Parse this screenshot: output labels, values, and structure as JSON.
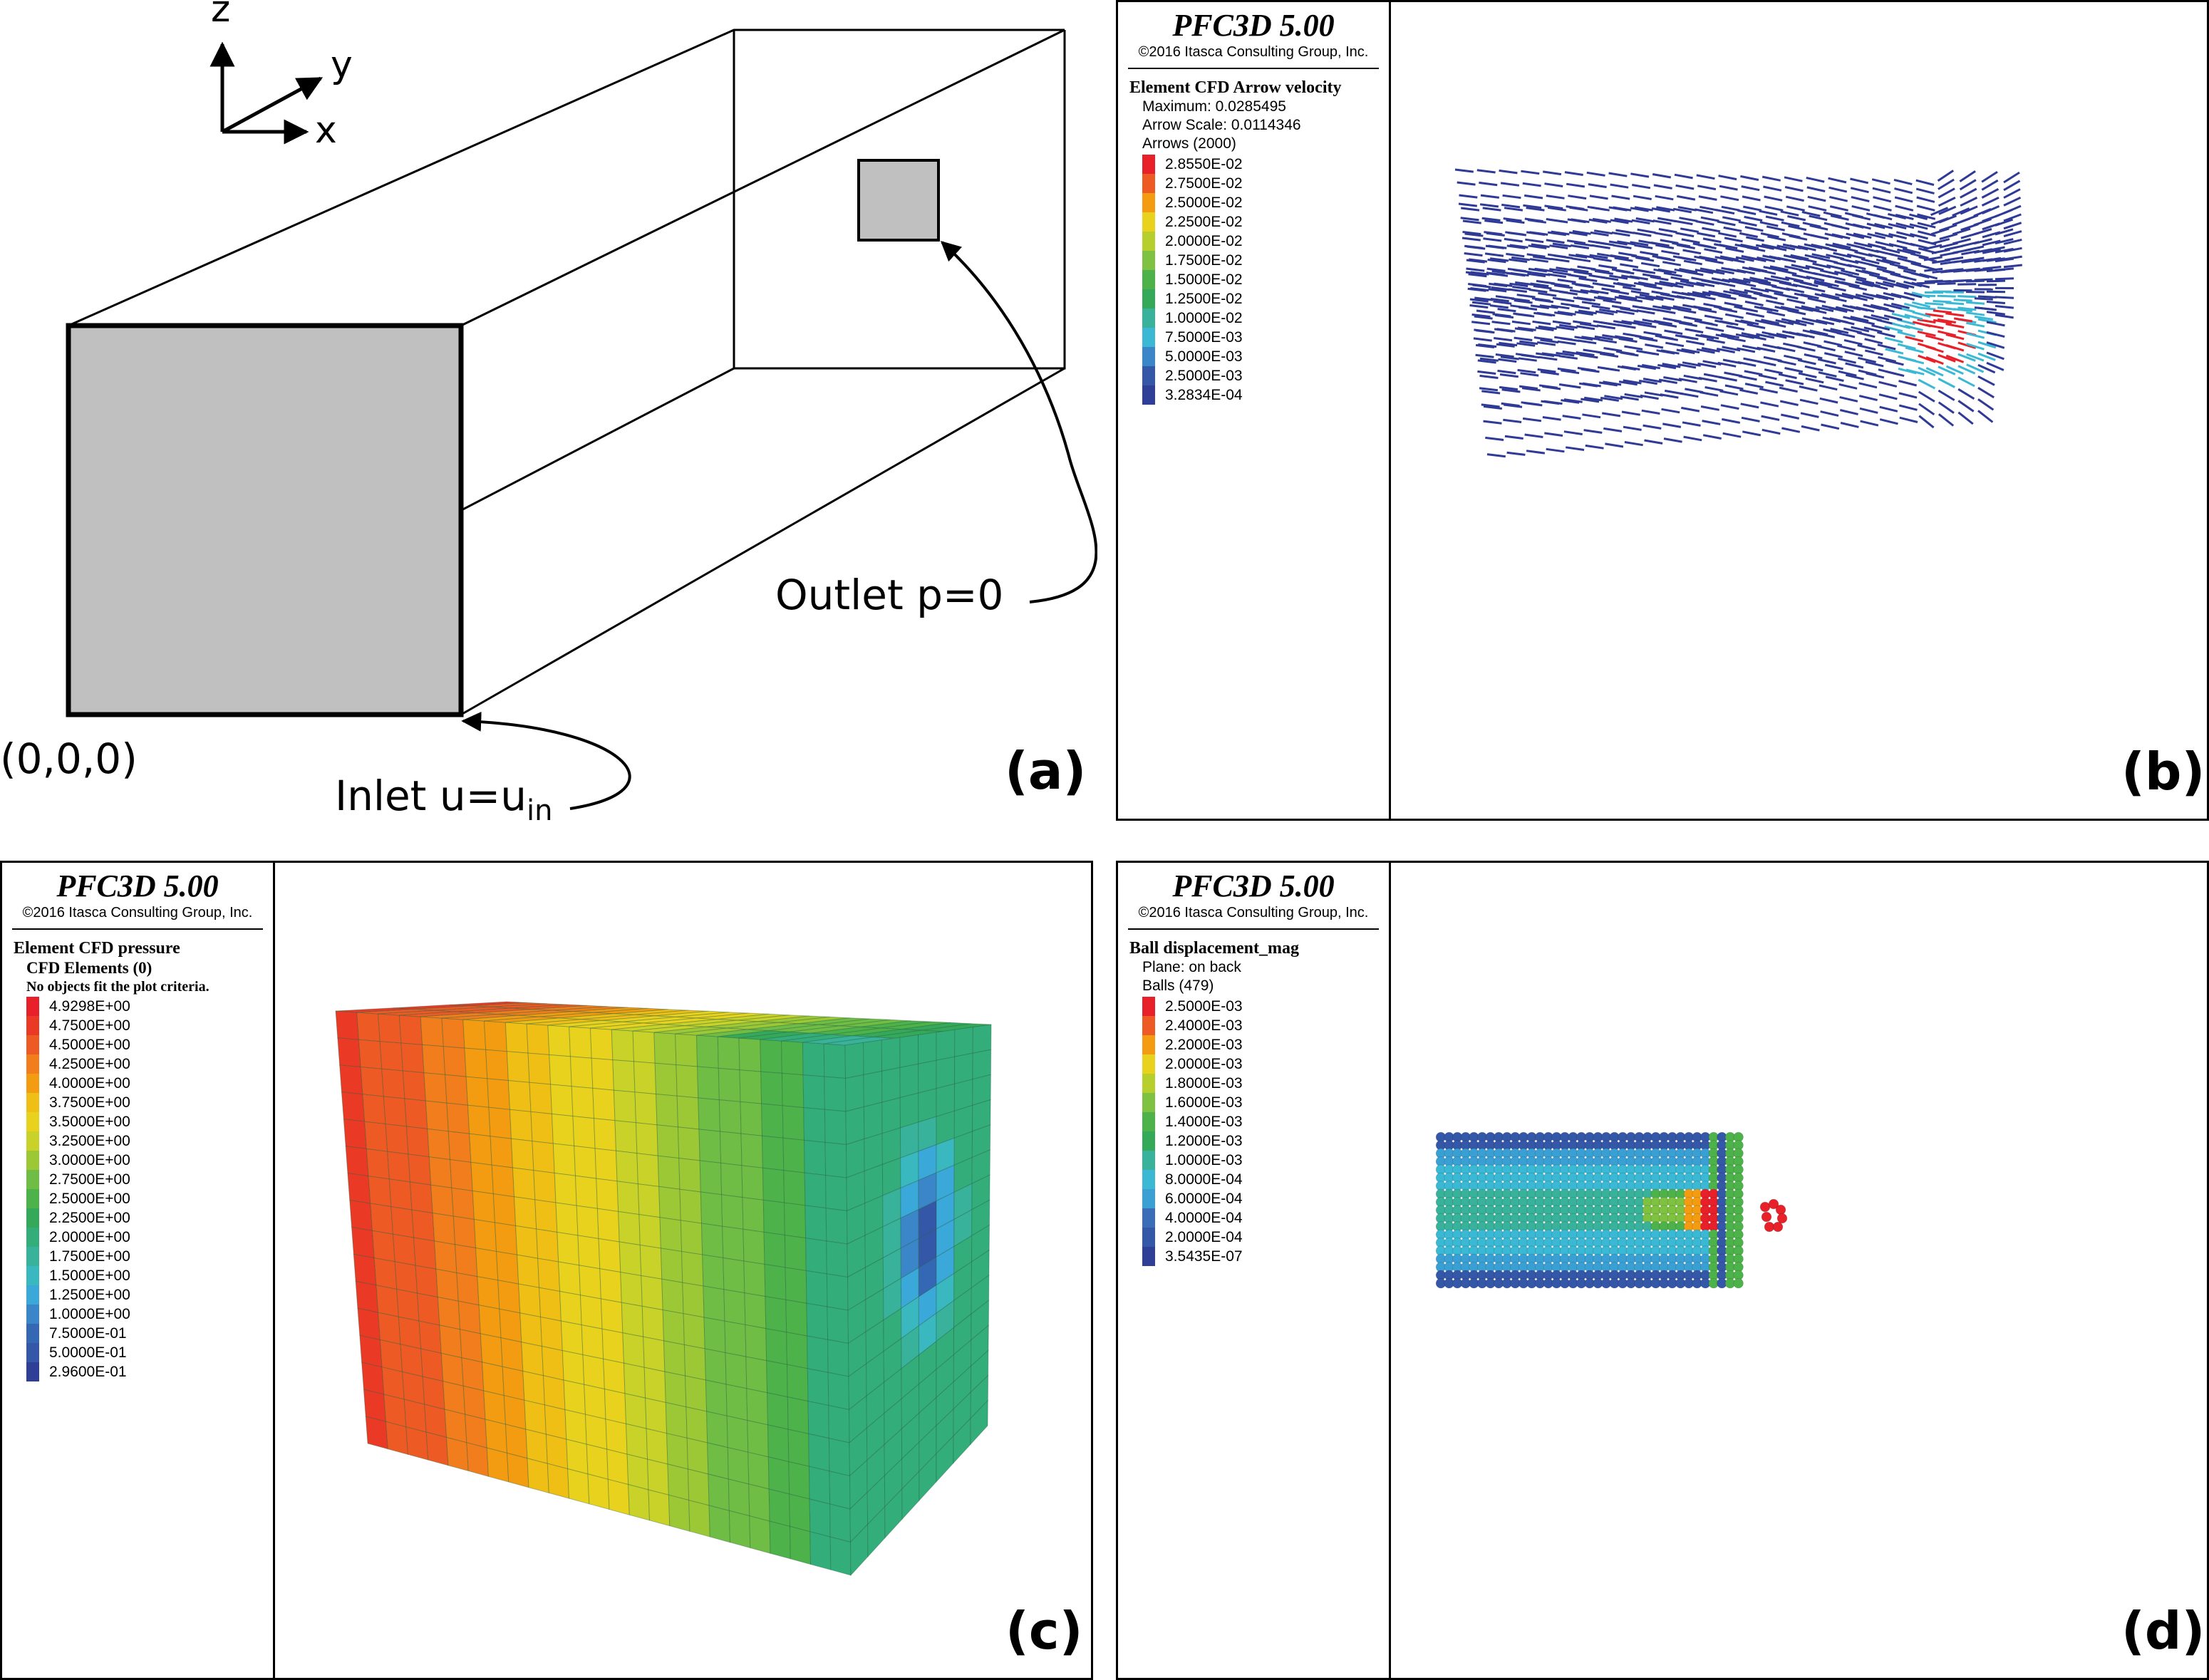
{
  "panel_a": {
    "axes": {
      "z": "z",
      "y": "y",
      "x": "x"
    },
    "origin": "(0,0,0)",
    "inlet": {
      "text": "Inlet u=u",
      "subscript": "in"
    },
    "outlet": "Outlet p=0",
    "label": "(a)"
  },
  "panel_b": {
    "title": "PFC3D 5.00",
    "copyright": "©2016 Itasca Consulting Group, Inc.",
    "heading": "Element CFD Arrow velocity",
    "lines": [
      "Maximum: 0.0285495",
      "Arrow Scale: 0.0114346",
      "Arrows (2000)"
    ],
    "scale": [
      {
        "value": "2.8550E-02",
        "color": "#e8202a"
      },
      {
        "value": "2.7500E-02",
        "color": "#ee5a24"
      },
      {
        "value": "2.5000E-02",
        "color": "#f39c12"
      },
      {
        "value": "2.2500E-02",
        "color": "#e8d21e"
      },
      {
        "value": "2.0000E-02",
        "color": "#b7cf2c"
      },
      {
        "value": "1.7500E-02",
        "color": "#7fc241"
      },
      {
        "value": "1.5000E-02",
        "color": "#4db24a"
      },
      {
        "value": "1.2500E-02",
        "color": "#35a95a"
      },
      {
        "value": "1.0000E-02",
        "color": "#38b29a"
      },
      {
        "value": "7.5000E-03",
        "color": "#3ab8d4"
      },
      {
        "value": "5.0000E-03",
        "color": "#3a86c8"
      },
      {
        "value": "2.5000E-03",
        "color": "#3457a8"
      },
      {
        "value": "3.2834E-04",
        "color": "#2f3f98"
      }
    ],
    "label": "(b)"
  },
  "panel_c": {
    "title": "PFC3D 5.00",
    "copyright": "©2016 Itasca Consulting Group, Inc.",
    "heading": "Element CFD pressure",
    "sub1": "CFD Elements (0)",
    "sub2": "No objects fit the plot criteria.",
    "scale": [
      {
        "value": "4.9298E+00",
        "color": "#e8202a"
      },
      {
        "value": "4.7500E+00",
        "color": "#ea3a26"
      },
      {
        "value": "4.5000E+00",
        "color": "#ee5a24"
      },
      {
        "value": "4.2500E+00",
        "color": "#f27d1c"
      },
      {
        "value": "4.0000E+00",
        "color": "#f39c12"
      },
      {
        "value": "3.7500E+00",
        "color": "#f0bf16"
      },
      {
        "value": "3.5000E+00",
        "color": "#e8d21e"
      },
      {
        "value": "3.2500E+00",
        "color": "#c9d228"
      },
      {
        "value": "3.0000E+00",
        "color": "#9dc836"
      },
      {
        "value": "2.7500E+00",
        "color": "#6fbd44"
      },
      {
        "value": "2.5000E+00",
        "color": "#4db24a"
      },
      {
        "value": "2.2500E+00",
        "color": "#35a95a"
      },
      {
        "value": "2.0000E+00",
        "color": "#33ad7a"
      },
      {
        "value": "1.7500E+00",
        "color": "#38b29a"
      },
      {
        "value": "1.5000E+00",
        "color": "#3ab8c0"
      },
      {
        "value": "1.2500E+00",
        "color": "#3aa8d8"
      },
      {
        "value": "1.0000E+00",
        "color": "#3a86c8"
      },
      {
        "value": "7.5000E-01",
        "color": "#3468b4"
      },
      {
        "value": "5.0000E-01",
        "color": "#3457a8"
      },
      {
        "value": "2.9600E-01",
        "color": "#2f3f98"
      }
    ],
    "label": "(c)"
  },
  "panel_d": {
    "title": "PFC3D 5.00",
    "copyright": "©2016 Itasca Consulting Group, Inc.",
    "heading": "Ball displacement_mag",
    "lines": [
      "Plane: on back",
      "Balls (479)"
    ],
    "scale": [
      {
        "value": "2.5000E-03",
        "color": "#e8202a"
      },
      {
        "value": "2.4000E-03",
        "color": "#ee5a24"
      },
      {
        "value": "2.2000E-03",
        "color": "#f39c12"
      },
      {
        "value": "2.0000E-03",
        "color": "#e8d21e"
      },
      {
        "value": "1.8000E-03",
        "color": "#b7cf2c"
      },
      {
        "value": "1.6000E-03",
        "color": "#7fc241"
      },
      {
        "value": "1.4000E-03",
        "color": "#4db24a"
      },
      {
        "value": "1.2000E-03",
        "color": "#35a95a"
      },
      {
        "value": "1.0000E-03",
        "color": "#38b29a"
      },
      {
        "value": "8.0000E-04",
        "color": "#3ab8d4"
      },
      {
        "value": "6.0000E-04",
        "color": "#3aa0d4"
      },
      {
        "value": "4.0000E-04",
        "color": "#3a6cb8"
      },
      {
        "value": "2.0000E-04",
        "color": "#3457a8"
      },
      {
        "value": "3.5435E-07",
        "color": "#2f3f98"
      }
    ],
    "label": "(d)"
  }
}
